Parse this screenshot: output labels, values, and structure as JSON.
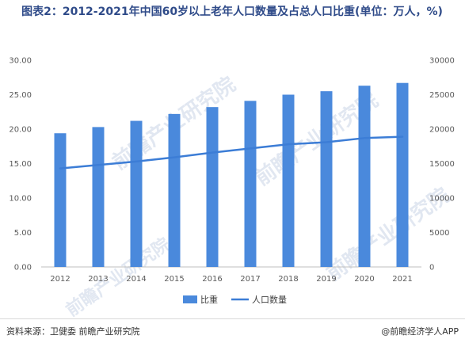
{
  "title": "图表2：2012-2021年中国60岁以上老年人口数量及占总人口比重(单位：万人，%)",
  "chart_data": {
    "type": "bar",
    "categories": [
      "2012",
      "2013",
      "2014",
      "2015",
      "2016",
      "2017",
      "2018",
      "2019",
      "2020",
      "2021"
    ],
    "series": [
      {
        "name": "比重",
        "type": "bar",
        "axis": "left",
        "color": "#4a89dc",
        "values": [
          19.4,
          20.3,
          21.2,
          22.2,
          23.2,
          24.1,
          25.0,
          25.5,
          26.3,
          26.7
        ]
      },
      {
        "name": "人口数量",
        "type": "line",
        "axis": "right",
        "color": "#3c7dd6",
        "values": [
          14300,
          14800,
          15300,
          15900,
          16600,
          17200,
          17800,
          18100,
          18700,
          18900
        ]
      }
    ],
    "y_left": {
      "min": 0,
      "max": 30,
      "ticks": [
        "0.00",
        "5.00",
        "10.00",
        "15.00",
        "20.00",
        "25.00",
        "30.00"
      ]
    },
    "y_right": {
      "min": 0,
      "max": 30000,
      "ticks": [
        "0",
        "5000",
        "10000",
        "15000",
        "20000",
        "25000",
        "30000"
      ]
    },
    "grid": false,
    "legend": "bottom"
  },
  "watermark": {
    "text": "前瞻产业研究院"
  },
  "footer": {
    "source": "资料来源：卫健委 前瞻产业研究院",
    "brand": "@前瞻经济学人APP"
  }
}
